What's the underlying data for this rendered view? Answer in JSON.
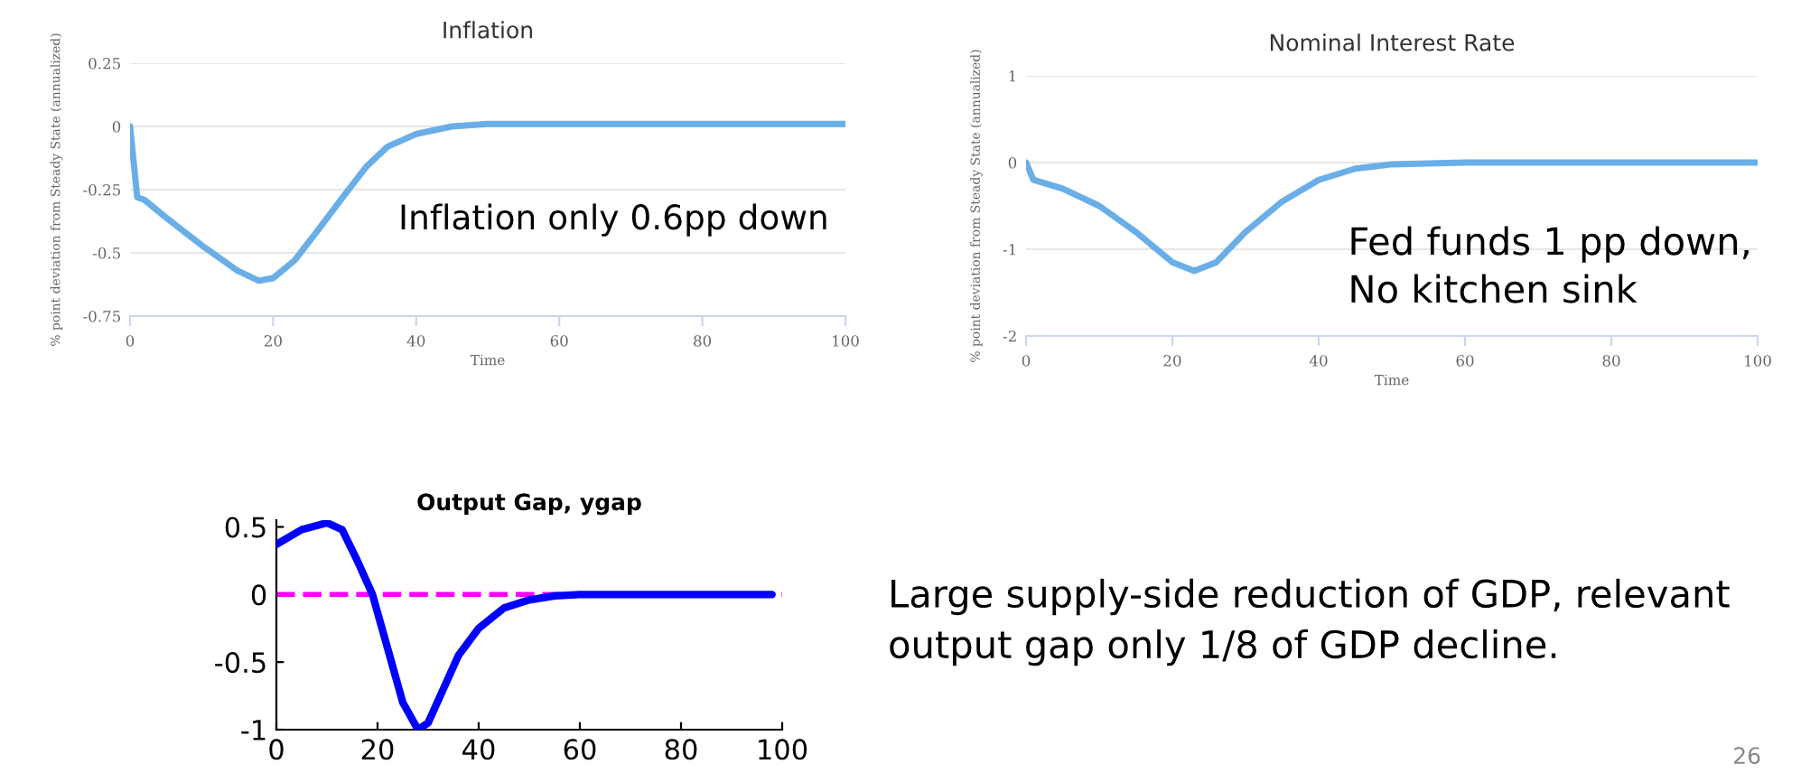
{
  "chart_data": [
    {
      "type": "line",
      "title": "Inflation",
      "xlabel": "Time",
      "ylabel": "% point deviation from Steady State (annualized)",
      "annotations": [
        "Inflation only 0.6pp down"
      ],
      "grid": "y",
      "xlim": [
        0,
        100
      ],
      "ylim": [
        -0.75,
        0.25
      ],
      "xticks": [
        0,
        20,
        40,
        60,
        80,
        100
      ],
      "yticks": [
        -0.75,
        -0.5,
        -0.25,
        0,
        0.25
      ],
      "series": [
        {
          "color": "#6aaee8",
          "x": [
            0,
            1,
            2,
            5,
            10,
            15,
            18,
            20,
            23,
            26,
            30,
            33,
            36,
            40,
            45,
            50,
            60,
            100
          ],
          "values": [
            0,
            -0.28,
            -0.29,
            -0.36,
            -0.47,
            -0.57,
            -0.61,
            -0.6,
            -0.53,
            -0.42,
            -0.27,
            -0.16,
            -0.08,
            -0.03,
            0.0,
            0.01,
            0.01,
            0.01
          ]
        }
      ]
    },
    {
      "type": "line",
      "title": "Nominal Interest Rate",
      "xlabel": "Time",
      "ylabel": "% point deviation from Steady State (annualized)",
      "annotations": [
        "Fed funds 1 pp down,\nNo kitchen sink"
      ],
      "grid": "y",
      "xlim": [
        0,
        100
      ],
      "ylim": [
        -2,
        1
      ],
      "xticks": [
        0,
        20,
        40,
        60,
        80,
        100
      ],
      "yticks": [
        -2,
        -1,
        0,
        1
      ],
      "series": [
        {
          "color": "#6aaee8",
          "x": [
            0,
            1,
            5,
            10,
            15,
            20,
            23,
            26,
            30,
            35,
            40,
            45,
            50,
            60,
            100
          ],
          "values": [
            0,
            -0.2,
            -0.3,
            -0.5,
            -0.8,
            -1.15,
            -1.25,
            -1.15,
            -0.8,
            -0.45,
            -0.2,
            -0.07,
            -0.02,
            0,
            0
          ]
        }
      ]
    },
    {
      "type": "line",
      "title": "Output Gap, ygap",
      "annotations": [
        "Large supply-side reduction of GDP, relevant\noutput gap only 1/8 of GDP decline.",
        "26"
      ],
      "xlim": [
        0,
        100
      ],
      "ylim": [
        -1,
        0.55
      ],
      "xticks": [
        0,
        20,
        40,
        60,
        80,
        100
      ],
      "yticks": [
        -1,
        -0.5,
        0,
        0.5
      ],
      "ref_lines": [
        {
          "axis": "y",
          "value": 0,
          "color": "#ff00ff",
          "line_style": "dashed"
        }
      ],
      "series": [
        {
          "color": "#0000ff",
          "x": [
            0,
            5,
            10,
            13,
            16,
            19,
            22,
            25,
            28,
            30,
            33,
            36,
            40,
            45,
            50,
            55,
            60,
            98
          ],
          "values": [
            0.37,
            0.48,
            0.53,
            0.48,
            0.25,
            0.0,
            -0.4,
            -0.8,
            -1.0,
            -0.95,
            -0.7,
            -0.45,
            -0.25,
            -0.1,
            -0.04,
            -0.01,
            0,
            0
          ]
        }
      ]
    }
  ]
}
